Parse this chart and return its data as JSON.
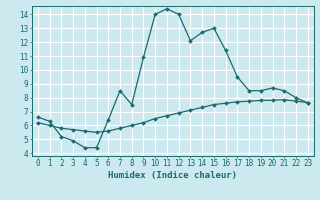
{
  "title": "",
  "xlabel": "Humidex (Indice chaleur)",
  "ylabel": "",
  "bg_color": "#cce9f0",
  "grid_color": "#ffffff",
  "line_color": "#1a6b6b",
  "xlim": [
    -0.5,
    23.5
  ],
  "ylim": [
    3.8,
    14.6
  ],
  "xticks": [
    0,
    1,
    2,
    3,
    4,
    5,
    6,
    7,
    8,
    9,
    10,
    11,
    12,
    13,
    14,
    15,
    16,
    17,
    18,
    19,
    20,
    21,
    22,
    23
  ],
  "yticks": [
    4,
    5,
    6,
    7,
    8,
    9,
    10,
    11,
    12,
    13,
    14
  ],
  "line1_x": [
    0,
    1,
    2,
    3,
    4,
    5,
    6,
    7,
    8,
    9,
    10,
    11,
    12,
    13,
    14,
    15,
    16,
    17,
    18,
    19,
    20,
    21,
    22,
    23
  ],
  "line1_y": [
    6.6,
    6.3,
    5.2,
    4.9,
    4.4,
    4.4,
    6.4,
    8.5,
    7.5,
    10.9,
    14.0,
    14.4,
    14.0,
    12.1,
    12.7,
    13.0,
    11.4,
    9.5,
    8.5,
    8.5,
    8.7,
    8.5,
    8.0,
    7.6
  ],
  "line2_x": [
    0,
    1,
    2,
    3,
    4,
    5,
    6,
    7,
    8,
    9,
    10,
    11,
    12,
    13,
    14,
    15,
    16,
    17,
    18,
    19,
    20,
    21,
    22,
    23
  ],
  "line2_y": [
    6.2,
    6.0,
    5.8,
    5.7,
    5.6,
    5.5,
    5.6,
    5.8,
    6.0,
    6.2,
    6.5,
    6.7,
    6.9,
    7.1,
    7.3,
    7.5,
    7.6,
    7.7,
    7.75,
    7.8,
    7.82,
    7.85,
    7.75,
    7.65
  ],
  "tick_fontsize": 5.5,
  "xlabel_fontsize": 6.5,
  "marker_size": 2.0,
  "line_width": 0.9
}
